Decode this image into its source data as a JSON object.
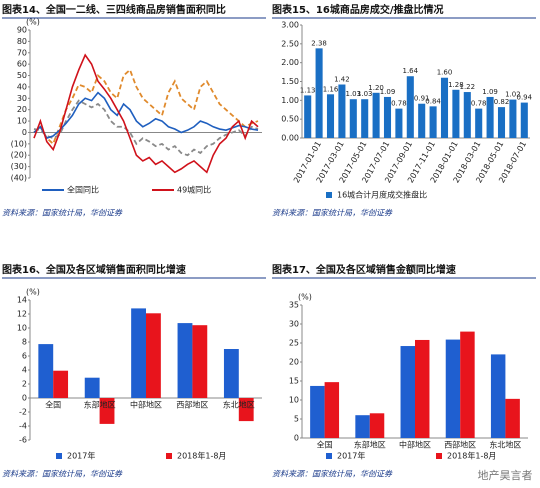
{
  "chart_data": [
    {
      "type": "line",
      "title": "图表14、全国一二线、三四线商品房销售面积同比",
      "unit": "(%)",
      "source": "资料来源：国家统计局，华创证券",
      "ylim": [
        -40,
        90
      ],
      "yticks": [
        90,
        80,
        70,
        60,
        50,
        40,
        30,
        20,
        10,
        0,
        {
          "value": -10,
          "label": "(10)"
        },
        {
          "value": -20,
          "label": "(20)"
        },
        {
          "value": -30,
          "label": "(30)"
        },
        {
          "value": -40,
          "label": "(40)"
        }
      ],
      "series": [
        {
          "color": "#e08a2c",
          "dash": true,
          "values": [
            0,
            5,
            -5,
            -10,
            5,
            20,
            30,
            42,
            40,
            35,
            50,
            45,
            35,
            30,
            50,
            55,
            40,
            30,
            25,
            20,
            15,
            35,
            45,
            30,
            25,
            20,
            40,
            45,
            35,
            25,
            20,
            15,
            10,
            5,
            8,
            10
          ]
        },
        {
          "color": "#8a8a8a",
          "dash": true,
          "values": [
            3,
            2,
            -3,
            -5,
            -2,
            10,
            20,
            28,
            25,
            22,
            25,
            20,
            10,
            5,
            5,
            0,
            -10,
            -5,
            -8,
            -12,
            -10,
            -15,
            -12,
            -18,
            -20,
            -15,
            -18,
            -12,
            -10,
            -5,
            -2,
            0,
            2,
            -3,
            5,
            3
          ]
        },
        {
          "name": "全国同比",
          "color": "#1f5fbf",
          "values": [
            0,
            5,
            -5,
            -3,
            2,
            8,
            15,
            25,
            30,
            28,
            35,
            30,
            20,
            15,
            25,
            20,
            10,
            5,
            8,
            12,
            10,
            5,
            3,
            0,
            2,
            5,
            10,
            8,
            5,
            3,
            2,
            4,
            6,
            5,
            3,
            2
          ]
        },
        {
          "name": "49城同比",
          "color": "#d0121b",
          "values": [
            -5,
            10,
            -8,
            -15,
            0,
            20,
            40,
            55,
            68,
            60,
            45,
            38,
            30,
            20,
            10,
            -5,
            -20,
            -25,
            -22,
            -28,
            -25,
            -30,
            -35,
            -32,
            -28,
            -25,
            -30,
            -35,
            -20,
            -10,
            -5,
            5,
            10,
            -5,
            10,
            5
          ]
        }
      ]
    },
    {
      "type": "bar",
      "title": "图表15、16城商品房成交/推盘比情况",
      "source": "资料来源：国家统计局，华创证券",
      "categories": [
        null,
        "2017-01-01",
        null,
        "2017-03-01",
        null,
        "2017-05-01",
        null,
        "2017-07-01",
        null,
        "2017-09-01",
        null,
        "2017-11-01",
        null,
        "2018-01-01",
        null,
        "2018-03-01",
        null,
        "2018-05-01",
        null,
        "2018-07-01"
      ],
      "ylim": [
        0,
        3
      ],
      "yticks": [
        {
          "value": 0,
          "label": "0.00"
        },
        {
          "value": 0.5,
          "label": "0.50"
        },
        {
          "value": 1,
          "label": "1.00"
        },
        {
          "value": 1.5,
          "label": "1.50"
        },
        {
          "value": 2,
          "label": "2.00"
        },
        {
          "value": 2.5,
          "label": "2.50"
        },
        {
          "value": 3,
          "label": "3.00"
        }
      ],
      "series": [
        {
          "name": "16城合计月度成交推盘比",
          "color": "#1a6fc4",
          "values": [
            1.13,
            2.38,
            1.16,
            1.42,
            1.03,
            1.03,
            1.2,
            1.09,
            0.78,
            1.64,
            0.91,
            0.84,
            1.6,
            1.28,
            1.22,
            0.78,
            1.09,
            0.82,
            1.02,
            0.94
          ],
          "value_labels": [
            "1.13",
            "2.38",
            "1.16",
            "1.42",
            "1.03",
            "1.03",
            "1.20",
            "1.09",
            "0.78",
            "1.64",
            "0.91",
            "0.84",
            "1.60",
            "1.28",
            "1.22",
            "0.78",
            "1.09",
            "0.82",
            "1.02",
            "0.94"
          ]
        }
      ]
    },
    {
      "type": "bar",
      "title": "图表16、全国及各区域销售面积同比增速",
      "unit": "(%)",
      "source": "资料来源：国家统计局，华创证券",
      "categories": [
        "全国",
        "东部地区",
        "中部地区",
        "西部地区",
        "东北地区"
      ],
      "ylim": [
        -6,
        14
      ],
      "yticks": [
        -6,
        -4,
        -2,
        0,
        2,
        4,
        6,
        8,
        10,
        12,
        14
      ],
      "labels_at_zero": true,
      "series": [
        {
          "name": "2017年",
          "color": "#1f5fd0",
          "values": [
            7.7,
            2.9,
            12.8,
            10.7,
            7.0
          ]
        },
        {
          "name": "2018年1-8月",
          "color": "#e8141c",
          "values": [
            3.9,
            -3.7,
            12.1,
            10.4,
            -3.3
          ]
        }
      ]
    },
    {
      "type": "bar",
      "title": "图表17、全国及各区域销售金额同比增速",
      "unit": "(%)",
      "source": "资料来源：国家统计局，华创证券",
      "categories": [
        "全国",
        "东部地区",
        "中部地区",
        "西部地区",
        "东北地区"
      ],
      "ylim": [
        0,
        35
      ],
      "yticks": [
        0,
        5,
        10,
        15,
        20,
        25,
        30,
        35
      ],
      "series": [
        {
          "name": "2017年",
          "color": "#1f5fd0",
          "values": [
            13.7,
            6.0,
            24.2,
            25.9,
            22.0
          ]
        },
        {
          "name": "2018年1-8月",
          "color": "#e8141c",
          "values": [
            14.7,
            6.5,
            25.8,
            28.0,
            10.3
          ]
        }
      ]
    }
  ],
  "watermark": "地产昊言者"
}
